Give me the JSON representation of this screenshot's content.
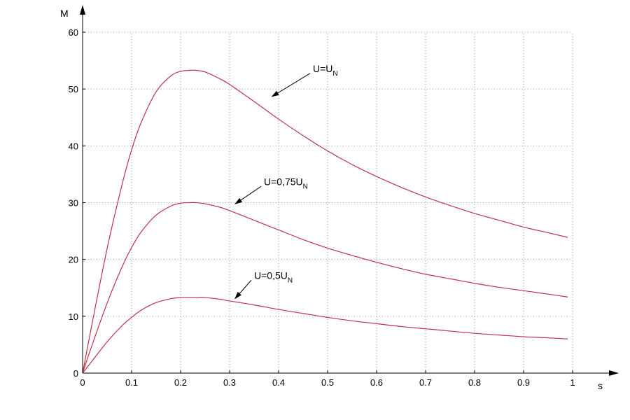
{
  "chart_data": {
    "type": "line",
    "xlabel": "s",
    "ylabel": "M",
    "xlim": [
      0,
      1
    ],
    "ylim": [
      0,
      60
    ],
    "x_ticks": [
      "0",
      "0.1",
      "0.2",
      "0.3",
      "0.4",
      "0.5",
      "0.6",
      "0.7",
      "0.8",
      "0.9",
      "1"
    ],
    "y_ticks": [
      "0",
      "10",
      "20",
      "30",
      "40",
      "50",
      "60"
    ],
    "grid": true,
    "line_color": "#c0304a",
    "series": [
      {
        "x": [
          0,
          0.02,
          0.05,
          0.08,
          0.1,
          0.12,
          0.15,
          0.18,
          0.2,
          0.22,
          0.23,
          0.25,
          0.28,
          0.3,
          0.35,
          0.4,
          0.45,
          0.5,
          0.55,
          0.6,
          0.65,
          0.7,
          0.75,
          0.8,
          0.85,
          0.9,
          0.95,
          0.99
        ],
        "y": [
          0,
          9.0,
          21.9,
          33.0,
          39.3,
          44.2,
          49.5,
          52.3,
          53.1,
          53.3,
          53.3,
          53.0,
          51.8,
          50.8,
          47.8,
          44.7,
          41.8,
          39.1,
          36.7,
          34.6,
          32.7,
          31.0,
          29.5,
          28.1,
          26.9,
          25.7,
          24.7,
          23.9
        ],
        "label": "U=U",
        "label_sub": "N"
      },
      {
        "x": [
          0,
          0.02,
          0.05,
          0.08,
          0.1,
          0.12,
          0.15,
          0.18,
          0.2,
          0.22,
          0.23,
          0.25,
          0.28,
          0.3,
          0.35,
          0.4,
          0.45,
          0.5,
          0.55,
          0.6,
          0.65,
          0.7,
          0.75,
          0.8,
          0.85,
          0.9,
          0.95,
          0.99
        ],
        "y": [
          0,
          5.1,
          12.3,
          18.6,
          22.1,
          24.9,
          27.8,
          29.4,
          29.9,
          30.0,
          30.0,
          29.8,
          29.2,
          28.6,
          26.9,
          25.2,
          23.5,
          22.0,
          20.7,
          19.5,
          18.4,
          17.4,
          16.6,
          15.8,
          15.1,
          14.5,
          13.9,
          13.4
        ],
        "label": "U=0,75U",
        "label_sub": "N"
      },
      {
        "x": [
          0,
          0.02,
          0.05,
          0.08,
          0.1,
          0.12,
          0.15,
          0.18,
          0.2,
          0.22,
          0.23,
          0.25,
          0.28,
          0.3,
          0.35,
          0.4,
          0.45,
          0.5,
          0.55,
          0.6,
          0.65,
          0.7,
          0.75,
          0.8,
          0.85,
          0.9,
          0.95,
          0.99
        ],
        "y": [
          0,
          2.2,
          5.5,
          8.3,
          9.8,
          11.1,
          12.4,
          13.1,
          13.3,
          13.3,
          13.3,
          13.3,
          13.0,
          12.7,
          12.0,
          11.2,
          10.5,
          9.8,
          9.2,
          8.7,
          8.2,
          7.8,
          7.4,
          7.0,
          6.7,
          6.4,
          6.2,
          6.0
        ],
        "label": "U=0,5U",
        "label_sub": "N"
      }
    ],
    "annotations": [
      {
        "text": "U=U",
        "sub": "N",
        "x": 0.47,
        "y": 53,
        "arrow_to_x": 0.385,
        "arrow_to_y": 48.6
      },
      {
        "text": "U=0,75U",
        "sub": "N",
        "x": 0.37,
        "y": 33.1,
        "arrow_to_x": 0.31,
        "arrow_to_y": 29.7
      },
      {
        "text": "U=0,5U",
        "sub": "N",
        "x": 0.35,
        "y": 16.6,
        "arrow_to_x": 0.31,
        "arrow_to_y": 13.0
      }
    ]
  }
}
